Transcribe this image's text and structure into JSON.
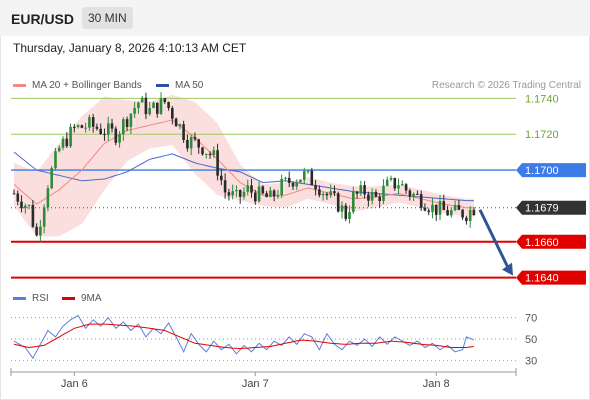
{
  "header": {
    "pair": "EUR/USD",
    "timeframe": "30 MIN"
  },
  "timestamp": "Thursday, January 8, 2026 4:10:13 AM CET",
  "legend": {
    "ma20": {
      "label": "MA 20 + Bollinger Bands",
      "color": "#f08a80"
    },
    "ma50": {
      "label": "MA 50",
      "color": "#4a6ac8"
    }
  },
  "credit": "Research © 2026 Trading Central",
  "rsi_legend": {
    "rsi": {
      "label": "RSI",
      "color": "#5b7fd6"
    },
    "ma9": {
      "label": "9MA",
      "color": "#e00000"
    }
  },
  "colors": {
    "up": "#2e8b3a",
    "down": "#2a2a2a",
    "band": "#fad8d8",
    "resistance": "#9ccc65",
    "pivot": "#3d7be6",
    "support": "#e00000",
    "arrow": "#2f5597"
  },
  "chart_data": [
    {
      "type": "candlestick",
      "ylim": [
        1.1632,
        1.1748
      ],
      "x_ticks": [
        {
          "label": "Jan 6",
          "i": 16
        },
        {
          "label": "Jan 7",
          "i": 64
        },
        {
          "label": "Jan 8",
          "i": 112
        }
      ],
      "levels": [
        {
          "value": 1.174,
          "label": "1.1740",
          "kind": "resistance"
        },
        {
          "value": 1.172,
          "label": "1.1720",
          "kind": "resistance"
        },
        {
          "value": 1.17,
          "label": "1.1700",
          "kind": "pivot"
        },
        {
          "value": 1.1679,
          "label": "1.1679",
          "kind": "current"
        },
        {
          "value": 1.166,
          "label": "1.1660",
          "kind": "support"
        },
        {
          "value": 1.164,
          "label": "1.1640",
          "kind": "support"
        }
      ],
      "forecast_arrow": {
        "from": 1.1679,
        "to": 1.164
      },
      "close_path": [
        [
          0,
          1.1687
        ],
        [
          4,
          1.1679
        ],
        [
          6,
          1.1663
        ],
        [
          9,
          1.1693
        ],
        [
          12,
          1.1712
        ],
        [
          16,
          1.1723
        ],
        [
          20,
          1.1725
        ],
        [
          24,
          1.1722
        ],
        [
          27,
          1.172
        ],
        [
          30,
          1.1729
        ],
        [
          33,
          1.1738
        ],
        [
          36,
          1.1733
        ],
        [
          40,
          1.1738
        ],
        [
          43,
          1.1728
        ],
        [
          46,
          1.1717
        ],
        [
          50,
          1.1713
        ],
        [
          53,
          1.1707
        ],
        [
          56,
          1.1688
        ],
        [
          59,
          1.1684
        ],
        [
          62,
          1.1689
        ],
        [
          65,
          1.1686
        ],
        [
          68,
          1.1684
        ],
        [
          71,
          1.1691
        ],
        [
          74,
          1.1695
        ],
        [
          77,
          1.1697
        ],
        [
          80,
          1.1693
        ],
        [
          83,
          1.1686
        ],
        [
          86,
          1.1681
        ],
        [
          88,
          1.1675
        ],
        [
          90,
          1.1685
        ],
        [
          93,
          1.1688
        ],
        [
          96,
          1.1684
        ],
        [
          99,
          1.1691
        ],
        [
          102,
          1.1693
        ],
        [
          105,
          1.1687
        ],
        [
          108,
          1.1684
        ],
        [
          111,
          1.1679
        ],
        [
          114,
          1.1677
        ],
        [
          117,
          1.1676
        ],
        [
          120,
          1.1676
        ],
        [
          122,
          1.1679
        ]
      ],
      "ma50_path": [
        [
          0,
          1.171
        ],
        [
          6,
          1.17
        ],
        [
          12,
          1.1697
        ],
        [
          18,
          1.1694
        ],
        [
          24,
          1.1695
        ],
        [
          30,
          1.1699
        ],
        [
          36,
          1.1706
        ],
        [
          42,
          1.1709
        ],
        [
          48,
          1.1704
        ],
        [
          54,
          1.1701
        ],
        [
          60,
          1.1699
        ],
        [
          66,
          1.1693
        ],
        [
          72,
          1.1694
        ],
        [
          78,
          1.1692
        ],
        [
          84,
          1.169
        ],
        [
          90,
          1.1688
        ],
        [
          96,
          1.1687
        ],
        [
          102,
          1.1686
        ],
        [
          108,
          1.1685
        ],
        [
          114,
          1.1684
        ],
        [
          120,
          1.1683
        ],
        [
          122,
          1.1683
        ]
      ],
      "ma20_path": [
        [
          0,
          1.1692
        ],
        [
          6,
          1.1681
        ],
        [
          12,
          1.1689
        ],
        [
          18,
          1.17
        ],
        [
          24,
          1.1715
        ],
        [
          30,
          1.1722
        ],
        [
          36,
          1.1725
        ],
        [
          42,
          1.1728
        ],
        [
          48,
          1.1718
        ],
        [
          54,
          1.1706
        ],
        [
          60,
          1.1693
        ],
        [
          66,
          1.1686
        ],
        [
          72,
          1.1686
        ],
        [
          78,
          1.169
        ],
        [
          84,
          1.1687
        ],
        [
          90,
          1.1684
        ],
        [
          96,
          1.1685
        ],
        [
          102,
          1.1687
        ],
        [
          108,
          1.1684
        ],
        [
          114,
          1.1681
        ],
        [
          120,
          1.1679
        ],
        [
          122,
          1.1679
        ]
      ],
      "band_width_path": [
        [
          0,
          0.0012
        ],
        [
          6,
          0.0018
        ],
        [
          12,
          0.0026
        ],
        [
          18,
          0.003
        ],
        [
          24,
          0.0026
        ],
        [
          30,
          0.0017
        ],
        [
          36,
          0.0013
        ],
        [
          42,
          0.0014
        ],
        [
          48,
          0.002
        ],
        [
          54,
          0.002
        ],
        [
          60,
          0.001
        ],
        [
          66,
          0.0006
        ],
        [
          72,
          0.0007
        ],
        [
          78,
          0.0006
        ],
        [
          84,
          0.0006
        ],
        [
          90,
          0.0007
        ],
        [
          96,
          0.0006
        ],
        [
          102,
          0.0005
        ],
        [
          108,
          0.0005
        ],
        [
          114,
          0.0005
        ],
        [
          120,
          0.0005
        ],
        [
          122,
          0.0005
        ]
      ]
    },
    {
      "type": "line",
      "name": "RSI",
      "ylim": [
        20,
        80
      ],
      "y_ticks": [
        70,
        50,
        30
      ],
      "rsi_path": [
        [
          0,
          48
        ],
        [
          3,
          42
        ],
        [
          5,
          32
        ],
        [
          7,
          45
        ],
        [
          9,
          58
        ],
        [
          11,
          52
        ],
        [
          13,
          62
        ],
        [
          15,
          68
        ],
        [
          17,
          72
        ],
        [
          19,
          60
        ],
        [
          21,
          68
        ],
        [
          23,
          62
        ],
        [
          25,
          70
        ],
        [
          27,
          60
        ],
        [
          29,
          66
        ],
        [
          31,
          58
        ],
        [
          33,
          64
        ],
        [
          35,
          52
        ],
        [
          37,
          60
        ],
        [
          39,
          55
        ],
        [
          41,
          65
        ],
        [
          43,
          52
        ],
        [
          45,
          38
        ],
        [
          47,
          55
        ],
        [
          49,
          45
        ],
        [
          51,
          38
        ],
        [
          53,
          48
        ],
        [
          55,
          40
        ],
        [
          57,
          45
        ],
        [
          59,
          36
        ],
        [
          61,
          44
        ],
        [
          63,
          38
        ],
        [
          65,
          46
        ],
        [
          67,
          40
        ],
        [
          69,
          48
        ],
        [
          71,
          44
        ],
        [
          73,
          52
        ],
        [
          75,
          45
        ],
        [
          77,
          55
        ],
        [
          79,
          52
        ],
        [
          81,
          40
        ],
        [
          83,
          55
        ],
        [
          85,
          45
        ],
        [
          87,
          40
        ],
        [
          89,
          48
        ],
        [
          91,
          44
        ],
        [
          93,
          50
        ],
        [
          95,
          43
        ],
        [
          97,
          52
        ],
        [
          99,
          45
        ],
        [
          101,
          52
        ],
        [
          103,
          48
        ],
        [
          105,
          44
        ],
        [
          107,
          48
        ],
        [
          109,
          42
        ],
        [
          111,
          46
        ],
        [
          113,
          40
        ],
        [
          115,
          44
        ],
        [
          117,
          38
        ],
        [
          119,
          40
        ],
        [
          120,
          52
        ],
        [
          122,
          49
        ]
      ],
      "ma9_path": [
        [
          0,
          45
        ],
        [
          4,
          42
        ],
        [
          8,
          44
        ],
        [
          12,
          52
        ],
        [
          16,
          60
        ],
        [
          20,
          64
        ],
        [
          24,
          64
        ],
        [
          28,
          63
        ],
        [
          32,
          62
        ],
        [
          36,
          60
        ],
        [
          40,
          58
        ],
        [
          44,
          52
        ],
        [
          48,
          46
        ],
        [
          52,
          44
        ],
        [
          56,
          42
        ],
        [
          60,
          41
        ],
        [
          64,
          42
        ],
        [
          68,
          43
        ],
        [
          72,
          46
        ],
        [
          76,
          49
        ],
        [
          80,
          48
        ],
        [
          84,
          46
        ],
        [
          88,
          45
        ],
        [
          92,
          46
        ],
        [
          96,
          46
        ],
        [
          100,
          48
        ],
        [
          104,
          47
        ],
        [
          108,
          45
        ],
        [
          112,
          44
        ],
        [
          116,
          42
        ],
        [
          120,
          42
        ],
        [
          122,
          43
        ]
      ]
    }
  ]
}
